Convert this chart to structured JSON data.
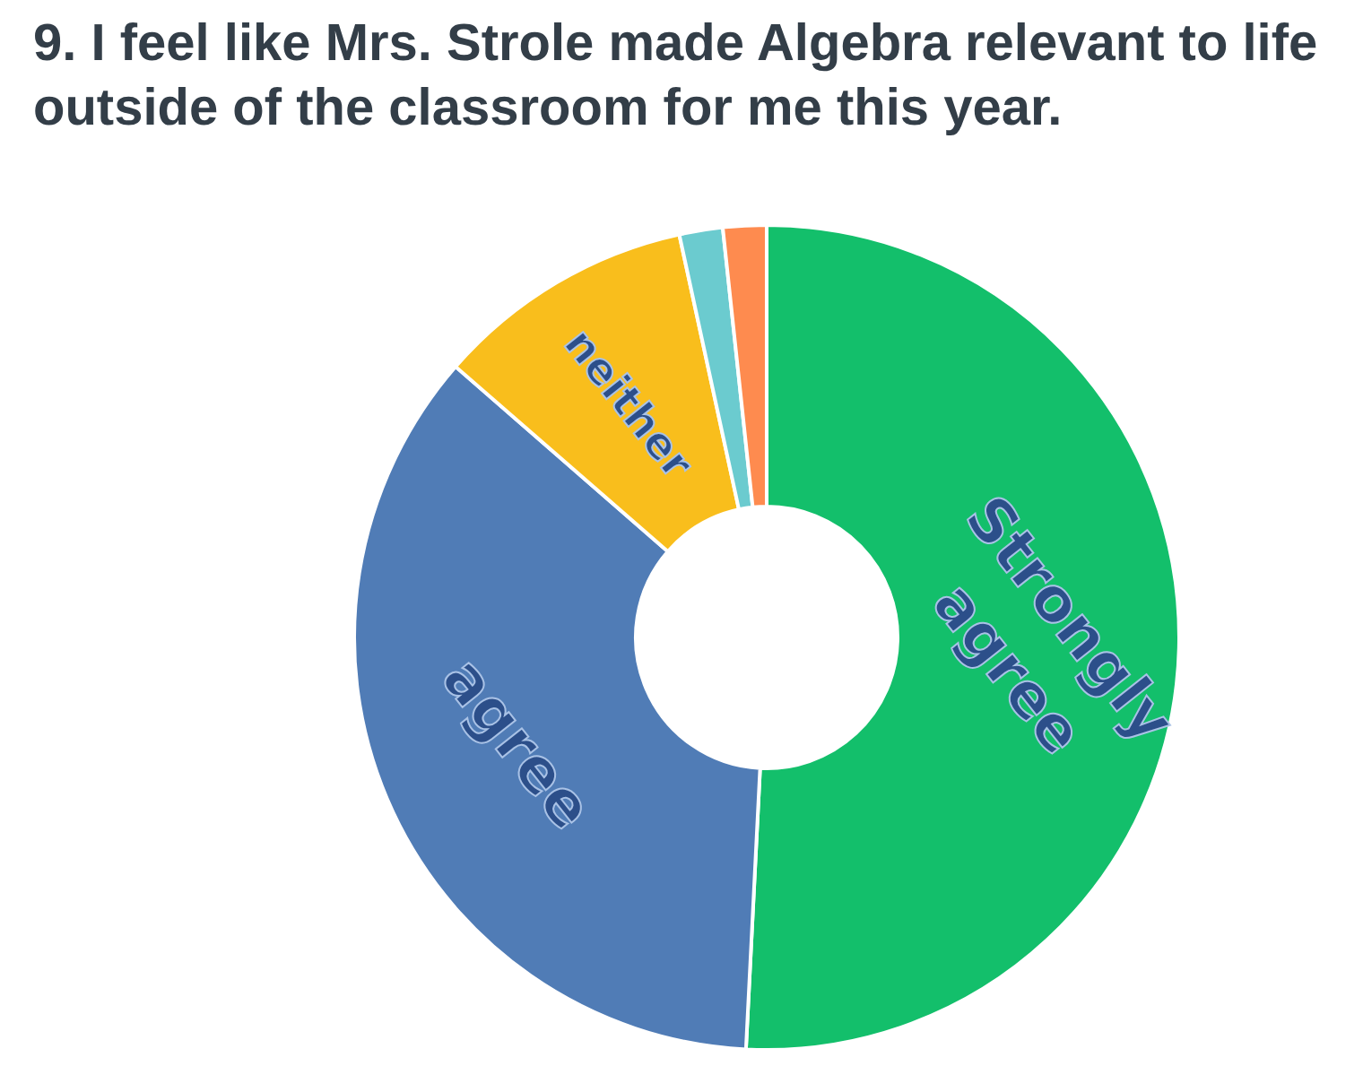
{
  "chart_data": {
    "type": "donut",
    "title": "9. I feel like Mrs. Strole made Algebra relevant to life outside of the classroom for me this year.",
    "categories": [
      "Strongly agree",
      "agree",
      "neither",
      null,
      null
    ],
    "values": [
      50.8,
      35.6,
      10.2,
      1.7,
      1.7
    ],
    "colors": [
      "#13bf6b",
      "#507cb6",
      "#f9be1c",
      "#6bcbcf",
      "#fe8b4f"
    ],
    "legend": false
  }
}
